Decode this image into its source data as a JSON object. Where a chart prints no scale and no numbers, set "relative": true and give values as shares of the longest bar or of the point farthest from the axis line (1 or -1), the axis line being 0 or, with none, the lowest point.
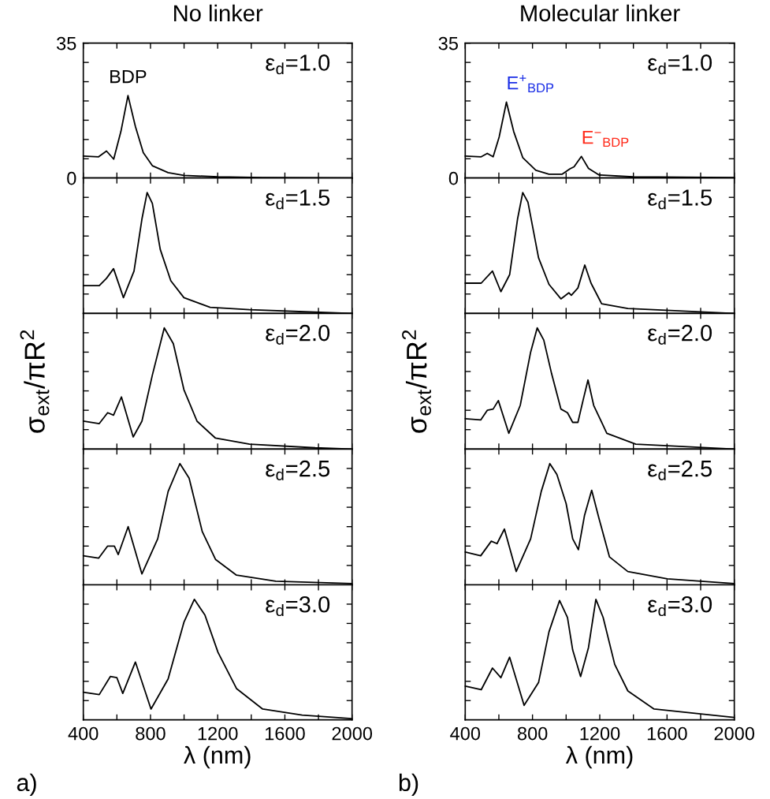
{
  "chart_data": [
    {
      "type": "line",
      "title": "No linker",
      "xlim": [
        400,
        2000
      ],
      "xticks": [
        400,
        {
          "value": 600,
          "label": null
        },
        800,
        {
          "value": 1000,
          "label": null
        },
        1200,
        {
          "value": 1400,
          "label": null
        },
        1600,
        {
          "value": 1800,
          "label": null
        },
        2000
      ],
      "ylim": [
        0,
        35
      ],
      "yticks": [
        0,
        {
          "value": 5,
          "label": null
        },
        {
          "value": 10,
          "label": null
        },
        {
          "value": 15,
          "label": null
        },
        {
          "value": 20,
          "label": null
        },
        {
          "value": 25,
          "label": null
        },
        {
          "value": 30,
          "label": null
        },
        35
      ],
      "tick_labels": "y",
      "x": [
        400,
        491,
        538,
        581,
        624,
        666,
        710,
        757,
        811,
        905,
        999,
        1202,
        1468,
        2000
      ],
      "series": [
        {
          "color": "#000000",
          "values": [
            5.7,
            5.5,
            7.0,
            4.9,
            12.1,
            21.4,
            13.4,
            6.6,
            3.2,
            1.4,
            0.7,
            0.3,
            0.1,
            0
          ]
        }
      ],
      "annotations": [
        "ε$_{d}$=1.0",
        {
          "text": "BDP",
          "x": 666,
          "y": 21.4
        }
      ]
    },
    {
      "type": "line",
      "relative": true,
      "xlim": [
        400,
        2000
      ],
      "xticks": [
        400,
        {
          "value": 600,
          "label": null
        },
        800,
        {
          "value": 1000,
          "label": null
        },
        1200,
        {
          "value": 1400,
          "label": null
        },
        1600,
        {
          "value": 1800,
          "label": null
        },
        2000
      ],
      "tick_labels": false,
      "x": [
        400,
        495,
        538,
        580,
        639,
        702,
        749,
        780,
        811,
        858,
        921,
        999,
        1155,
        1390,
        1781,
        2000
      ],
      "series": [
        {
          "color": "#000000",
          "values": [
            0.23,
            0.23,
            0.29,
            0.37,
            0.13,
            0.35,
            0.78,
            1,
            0.91,
            0.53,
            0.27,
            0.13,
            0.05,
            0.03,
            0.01,
            0
          ]
        }
      ],
      "annotations": [
        "ε$_{d}$=1.5"
      ]
    },
    {
      "type": "line",
      "relative": true,
      "ylabel": "σ$_{ext}$/πR$^{2}$",
      "xlim": [
        400,
        2000
      ],
      "xticks": [
        400,
        {
          "value": 600,
          "label": null
        },
        800,
        {
          "value": 1000,
          "label": null
        },
        1200,
        {
          "value": 1400,
          "label": null
        },
        1600,
        {
          "value": 1800,
          "label": null
        },
        2000
      ],
      "tick_labels": false,
      "x": [
        400,
        495,
        545,
        580,
        627,
        697,
        749,
        811,
        882,
        936,
        999,
        1077,
        1187,
        1390,
        1781,
        2000
      ],
      "series": [
        {
          "color": "#000000",
          "values": [
            0.23,
            0.21,
            0.3,
            0.28,
            0.43,
            0.1,
            0.23,
            0.61,
            1,
            0.87,
            0.49,
            0.23,
            0.09,
            0.04,
            0.01,
            0
          ]
        }
      ],
      "annotations": [
        "ε$_{d}$=2.0"
      ]
    },
    {
      "type": "line",
      "relative": true,
      "xlim": [
        400,
        2000
      ],
      "xticks": [
        400,
        {
          "value": 600,
          "label": null
        },
        800,
        {
          "value": 1000,
          "label": null
        },
        1200,
        {
          "value": 1400,
          "label": null
        },
        1600,
        {
          "value": 1800,
          "label": null
        },
        2000
      ],
      "tick_labels": false,
      "x": [
        400,
        491,
        545,
        585,
        608,
        667,
        749,
        843,
        905,
        975,
        1030,
        1108,
        1187,
        1312,
        1546,
        2000
      ],
      "series": [
        {
          "color": "#000000",
          "values": [
            0.24,
            0.22,
            0.32,
            0.32,
            0.25,
            0.48,
            0.09,
            0.38,
            0.77,
            1,
            0.88,
            0.44,
            0.21,
            0.08,
            0.03,
            0.01
          ]
        }
      ],
      "annotations": [
        "ε$_{d}$=2.5"
      ]
    },
    {
      "type": "line",
      "relative": true,
      "xlabel": "λ (nm)",
      "xlim": [
        400,
        2000
      ],
      "xticks": [
        400,
        {
          "value": 600,
          "label": null
        },
        800,
        {
          "value": 1000,
          "label": null
        },
        1200,
        {
          "value": 1400,
          "label": null
        },
        1600,
        {
          "value": 1800,
          "label": null
        },
        2000
      ],
      "tick_labels": "x",
      "x": [
        400,
        495,
        561,
        600,
        635,
        710,
        803,
        905,
        999,
        1061,
        1124,
        1202,
        1312,
        1468,
        1703,
        2000
      ],
      "series": [
        {
          "color": "#000000",
          "values": [
            0.23,
            0.21,
            0.36,
            0.35,
            0.22,
            0.48,
            0.09,
            0.34,
            0.81,
            1,
            0.87,
            0.56,
            0.26,
            0.09,
            0.04,
            0.01
          ]
        }
      ],
      "annotations": [
        "ε$_{d}$=3.0",
        "a)"
      ]
    },
    {
      "type": "line",
      "title": "Molecular linker",
      "xlim": [
        400,
        2000
      ],
      "xticks": [
        400,
        {
          "value": 600,
          "label": null
        },
        800,
        {
          "value": 1000,
          "label": null
        },
        1200,
        {
          "value": 1400,
          "label": null
        },
        1600,
        {
          "value": 1800,
          "label": null
        },
        2000
      ],
      "ylim": [
        0,
        35
      ],
      "yticks": [
        0,
        {
          "value": 5,
          "label": null
        },
        {
          "value": 10,
          "label": null
        },
        {
          "value": 15,
          "label": null
        },
        {
          "value": 20,
          "label": null
        },
        {
          "value": 25,
          "label": null
        },
        {
          "value": 30,
          "label": null
        },
        35
      ],
      "tick_labels": "y",
      "x": [
        400,
        495,
        531,
        566,
        602,
        645,
        688,
        742,
        820,
        898,
        977,
        1023,
        1047,
        1091,
        1133,
        1195,
        1398,
        2000
      ],
      "series": [
        {
          "color": "#000000",
          "values": [
            5.7,
            5.5,
            6.4,
            5.5,
            10.7,
            19.7,
            12.1,
            5.3,
            2.0,
            1.0,
            1.0,
            2.4,
            2.9,
            5.6,
            2.5,
            0.8,
            0.3,
            0.1
          ]
        }
      ],
      "annotations": [
        "ε$_{d}$=1.0",
        {
          "text": "E$^{+}$$_{BDP}$",
          "x": 645,
          "y": 19.7
        },
        {
          "text": "E$^{−}$$_{BDP}$",
          "x": 1091,
          "y": 5.6
        }
      ]
    },
    {
      "type": "line",
      "relative": true,
      "xlim": [
        400,
        2000
      ],
      "xticks": [
        400,
        {
          "value": 600,
          "label": null
        },
        800,
        {
          "value": 1000,
          "label": null
        },
        1200,
        {
          "value": 1400,
          "label": null
        },
        1600,
        {
          "value": 1800,
          "label": null
        },
        2000
      ],
      "tick_labels": false,
      "x": [
        400,
        495,
        562,
        612,
        664,
        711,
        742,
        773,
        836,
        898,
        969,
        1016,
        1031,
        1070,
        1111,
        1148,
        1211,
        1367,
        2000
      ],
      "series": [
        {
          "color": "#000000",
          "values": [
            0.25,
            0.25,
            0.35,
            0.18,
            0.32,
            0.78,
            1,
            0.92,
            0.46,
            0.24,
            0.12,
            0.17,
            0.15,
            0.21,
            0.4,
            0.25,
            0.08,
            0.04,
            0
          ]
        }
      ],
      "annotations": [
        "ε$_{d}$=1.5"
      ]
    },
    {
      "type": "line",
      "relative": true,
      "ylabel": "σ$_{ext}$/πR$^{2}$",
      "xlim": [
        400,
        2000
      ],
      "xticks": [
        400,
        {
          "value": 600,
          "label": null
        },
        800,
        {
          "value": 1000,
          "label": null
        },
        1200,
        {
          "value": 1400,
          "label": null
        },
        1600,
        {
          "value": 1800,
          "label": null
        },
        2000
      ],
      "tick_labels": false,
      "x": [
        400,
        492,
        531,
        566,
        597,
        659,
        727,
        789,
        828,
        867,
        914,
        969,
        1008,
        1039,
        1070,
        1102,
        1130,
        1164,
        1242,
        1414,
        2000
      ],
      "series": [
        {
          "color": "#000000",
          "values": [
            0.25,
            0.24,
            0.32,
            0.33,
            0.4,
            0.13,
            0.36,
            0.8,
            1,
            0.9,
            0.62,
            0.33,
            0.3,
            0.22,
            0.22,
            0.41,
            0.57,
            0.36,
            0.13,
            0.04,
            0
          ]
        }
      ],
      "annotations": [
        "ε$_{d}$=2.0"
      ]
    },
    {
      "type": "line",
      "relative": true,
      "xlim": [
        400,
        2000
      ],
      "xticks": [
        400,
        {
          "value": 600,
          "label": null
        },
        800,
        {
          "value": 1000,
          "label": null
        },
        1200,
        {
          "value": 1400,
          "label": null
        },
        1600,
        {
          "value": 1800,
          "label": null
        },
        2000
      ],
      "tick_labels": false,
      "x": [
        400,
        492,
        555,
        589,
        633,
        703,
        789,
        852,
        903,
        945,
        1000,
        1039,
        1073,
        1109,
        1152,
        1195,
        1258,
        1367,
        1602,
        2000
      ],
      "series": [
        {
          "color": "#000000",
          "values": [
            0.27,
            0.24,
            0.36,
            0.34,
            0.46,
            0.11,
            0.38,
            0.77,
            1,
            0.91,
            0.67,
            0.38,
            0.29,
            0.57,
            0.78,
            0.55,
            0.23,
            0.11,
            0.05,
            0.01
          ]
        }
      ],
      "annotations": [
        "ε$_{d}$=2.5"
      ]
    },
    {
      "type": "line",
      "relative": true,
      "xlabel": "λ (nm)",
      "xlim": [
        400,
        2000
      ],
      "xticks": [
        400,
        {
          "value": 600,
          "label": null
        },
        800,
        {
          "value": 1000,
          "label": null
        },
        1200,
        {
          "value": 1400,
          "label": null
        },
        1600,
        {
          "value": 1800,
          "label": null
        },
        2000
      ],
      "tick_labels": "x",
      "x": [
        400,
        495,
        562,
        612,
        664,
        750,
        836,
        898,
        961,
        1008,
        1039,
        1086,
        1133,
        1177,
        1220,
        1289,
        1367,
        1523,
        2000
      ],
      "series": [
        {
          "color": "#000000",
          "values": [
            0.28,
            0.25,
            0.43,
            0.35,
            0.52,
            0.12,
            0.31,
            0.73,
            0.99,
            0.85,
            0.58,
            0.36,
            0.6,
            1,
            0.85,
            0.46,
            0.24,
            0.09,
            0.02
          ]
        }
      ],
      "annotations": [
        "ε$_{d}$=3.0",
        "b)"
      ]
    }
  ]
}
